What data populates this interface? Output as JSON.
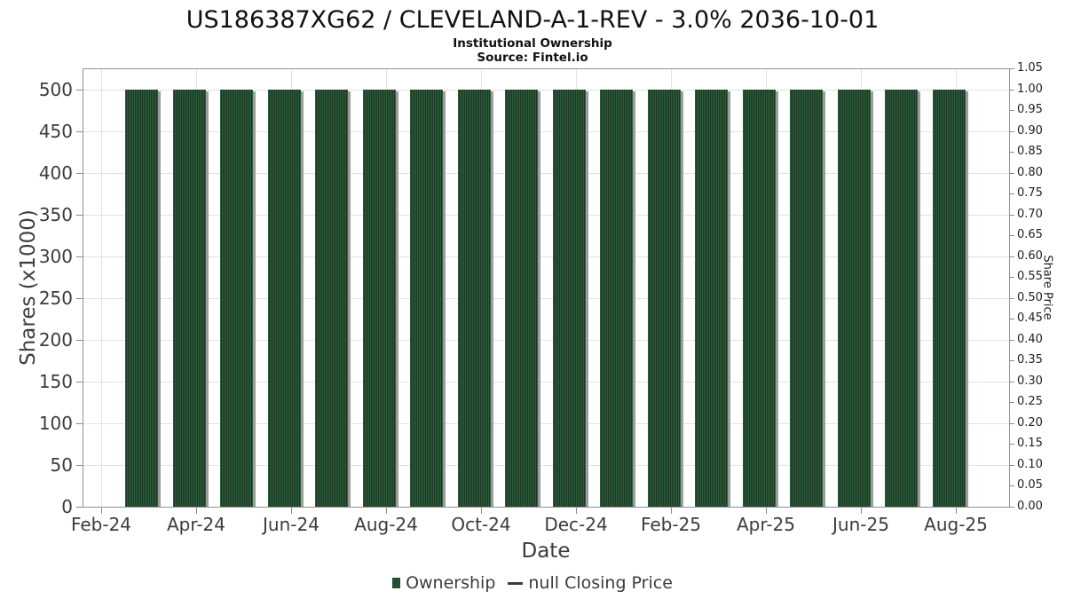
{
  "header": {
    "title": "US186387XG62 / CLEVELAND-A-1-REV - 3.0% 2036-10-01",
    "subtitle": "Institutional Ownership",
    "source": "Source: Fintel.io"
  },
  "chart_data": {
    "type": "bar",
    "title": "US186387XG62 / CLEVELAND-A-1-REV - 3.0% 2036-10-01",
    "subtitle": "Institutional Ownership",
    "source": "Source: Fintel.io",
    "xlabel": "Date",
    "ylabel": "Shares (x1000)",
    "y2label": "Share Price",
    "categories": [
      "Mar-24",
      "Apr-24",
      "May-24",
      "Jun-24",
      "Jul-24",
      "Aug-24",
      "Sep-24",
      "Oct-24",
      "Nov-24",
      "Dec-24",
      "Jan-25",
      "Feb-25",
      "Mar-25",
      "Apr-25",
      "May-25",
      "Jun-25",
      "Jul-25",
      "Aug-25"
    ],
    "series": [
      {
        "name": "Ownership",
        "type": "bar",
        "axis": "left",
        "values": [
          500,
          500,
          500,
          500,
          500,
          500,
          500,
          500,
          500,
          500,
          500,
          500,
          500,
          500,
          500,
          500,
          500,
          500
        ]
      },
      {
        "name": "null Closing Price",
        "type": "line",
        "axis": "right",
        "values": []
      }
    ],
    "ylim": [
      0,
      525
    ],
    "y2lim": [
      0,
      1.05
    ],
    "grid": true,
    "legend_position": "bottom",
    "y_ticks": [
      "0",
      "50",
      "100",
      "150",
      "200",
      "250",
      "300",
      "350",
      "400",
      "450",
      "500"
    ],
    "y2_ticks": [
      "0.00",
      "0.05",
      "0.10",
      "0.15",
      "0.20",
      "0.25",
      "0.30",
      "0.35",
      "0.40",
      "0.45",
      "0.50",
      "0.55",
      "0.60",
      "0.65",
      "0.70",
      "0.75",
      "0.80",
      "0.85",
      "0.90",
      "0.95",
      "1.00",
      "1.05"
    ],
    "x_ticks": [
      "Feb-24",
      "Apr-24",
      "Jun-24",
      "Aug-24",
      "Oct-24",
      "Dec-24",
      "Feb-25",
      "Apr-25",
      "Jun-25",
      "Aug-25"
    ]
  },
  "colors": {
    "bar_base": "#2e5c3b",
    "bar_stripe": "#1a3a23",
    "bar_shadow": "#9c9c9c",
    "legend_green": "#24502f",
    "legend_dash": "#3d3d3d",
    "grid": "#e2e2e2",
    "spine": "#919191"
  }
}
